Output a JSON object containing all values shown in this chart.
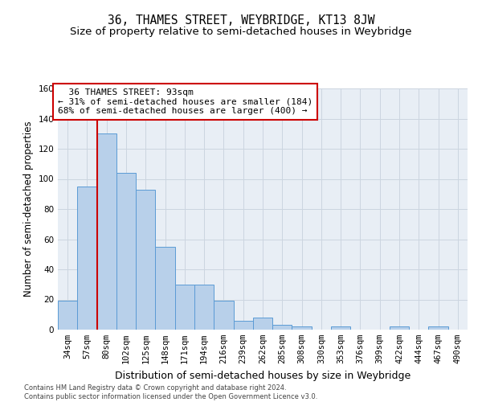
{
  "title": "36, THAMES STREET, WEYBRIDGE, KT13 8JW",
  "subtitle": "Size of property relative to semi-detached houses in Weybridge",
  "xlabel": "Distribution of semi-detached houses by size in Weybridge",
  "ylabel": "Number of semi-detached properties",
  "footer_line1": "Contains HM Land Registry data © Crown copyright and database right 2024.",
  "footer_line2": "Contains public sector information licensed under the Open Government Licence v3.0.",
  "bar_labels": [
    "34sqm",
    "57sqm",
    "80sqm",
    "102sqm",
    "125sqm",
    "148sqm",
    "171sqm",
    "194sqm",
    "216sqm",
    "239sqm",
    "262sqm",
    "285sqm",
    "308sqm",
    "330sqm",
    "353sqm",
    "376sqm",
    "399sqm",
    "422sqm",
    "444sqm",
    "467sqm",
    "490sqm"
  ],
  "bar_values": [
    19,
    95,
    130,
    104,
    93,
    55,
    30,
    30,
    19,
    6,
    8,
    3,
    2,
    0,
    2,
    0,
    0,
    2,
    0,
    2,
    0
  ],
  "bar_color": "#b8d0ea",
  "bar_edgecolor": "#5b9bd5",
  "property_label": "36 THAMES STREET: 93sqm",
  "pct_smaller": 31,
  "pct_larger": 68,
  "count_smaller": 184,
  "count_larger": 400,
  "vline_color": "#cc0000",
  "annotation_box_edgecolor": "#cc0000",
  "grid_color": "#ccd5e0",
  "bg_color": "#e8eef5",
  "ylim": [
    0,
    160
  ],
  "yticks": [
    0,
    20,
    40,
    60,
    80,
    100,
    120,
    140,
    160
  ],
  "title_fontsize": 10.5,
  "subtitle_fontsize": 9.5,
  "xlabel_fontsize": 9,
  "ylabel_fontsize": 8.5,
  "tick_fontsize": 7.5,
  "annotation_fontsize": 8,
  "vline_x": 1.5
}
